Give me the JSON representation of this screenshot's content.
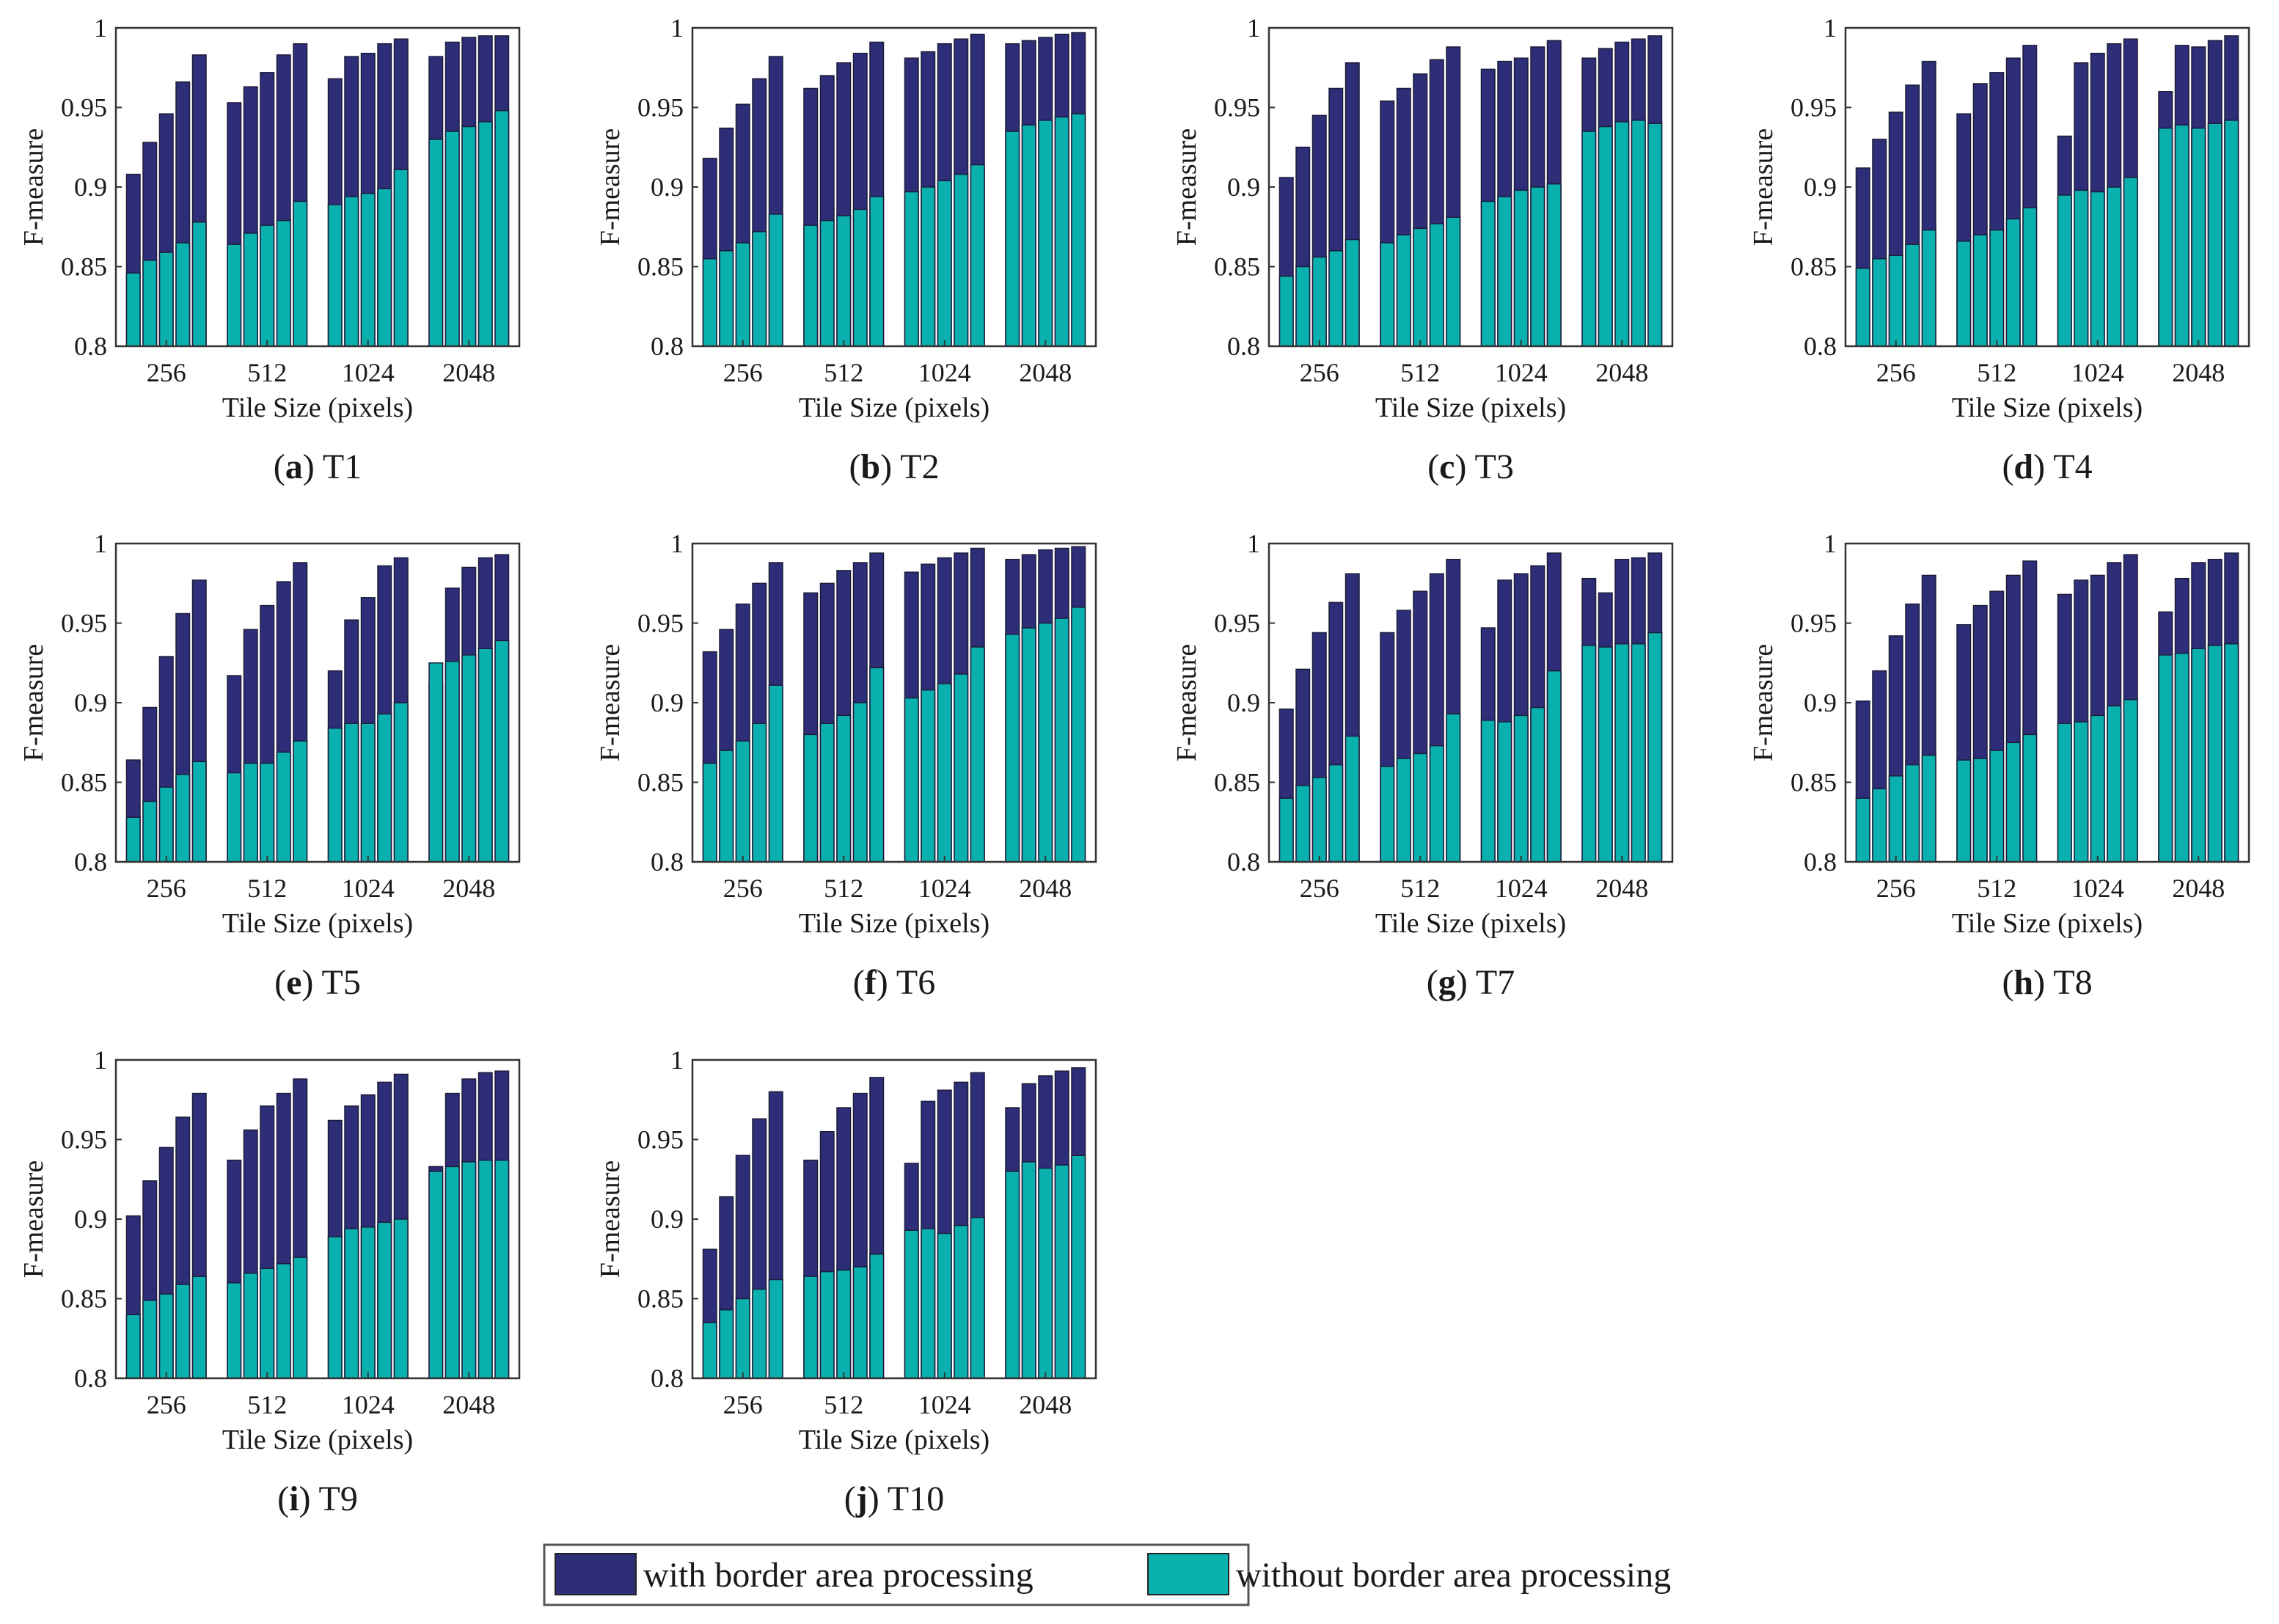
{
  "figure": {
    "legend": {
      "with_label": "with border area processing",
      "without_label": "without border area processing",
      "placement": "bottom-center"
    }
  },
  "colors": {
    "with": "#2E2E78",
    "without": "#0AB0AE",
    "axis": "#333333"
  },
  "chart_data": [
    {
      "type": "bar",
      "letter": "a",
      "title": "T1",
      "xlabel": "Tile Size (pixels)",
      "ylabel": "F-measure",
      "ylim": [
        0.8,
        1
      ],
      "yticks": [
        "0.8",
        "0.85",
        "0.9",
        "0.95",
        "1"
      ],
      "categories": [
        "256",
        "512",
        "1024",
        "2048"
      ],
      "series": [
        {
          "name": "with border area processing",
          "values": [
            [
              0.908,
              0.928,
              0.946,
              0.966,
              0.983
            ],
            [
              0.953,
              0.963,
              0.972,
              0.983,
              0.99
            ],
            [
              0.968,
              0.982,
              0.984,
              0.99,
              0.993
            ],
            [
              0.982,
              0.991,
              0.994,
              0.995,
              0.995
            ]
          ]
        },
        {
          "name": "without border area processing",
          "values": [
            [
              0.846,
              0.854,
              0.859,
              0.865,
              0.878
            ],
            [
              0.864,
              0.871,
              0.876,
              0.879,
              0.891
            ],
            [
              0.889,
              0.894,
              0.896,
              0.899,
              0.911
            ],
            [
              0.93,
              0.935,
              0.938,
              0.941,
              0.948
            ]
          ]
        }
      ]
    },
    {
      "type": "bar",
      "letter": "b",
      "title": "T2",
      "xlabel": "Tile Size (pixels)",
      "ylabel": "F-measure",
      "ylim": [
        0.8,
        1
      ],
      "yticks": [
        "0.8",
        "0.85",
        "0.9",
        "0.95",
        "1"
      ],
      "categories": [
        "256",
        "512",
        "1024",
        "2048"
      ],
      "series": [
        {
          "name": "with border area processing",
          "values": [
            [
              0.918,
              0.937,
              0.952,
              0.968,
              0.982
            ],
            [
              0.962,
              0.97,
              0.978,
              0.984,
              0.991
            ],
            [
              0.981,
              0.985,
              0.99,
              0.993,
              0.996
            ],
            [
              0.99,
              0.992,
              0.994,
              0.996,
              0.997
            ]
          ]
        },
        {
          "name": "without border area processing",
          "values": [
            [
              0.855,
              0.86,
              0.865,
              0.872,
              0.883
            ],
            [
              0.876,
              0.879,
              0.882,
              0.886,
              0.894
            ],
            [
              0.897,
              0.9,
              0.904,
              0.908,
              0.914
            ],
            [
              0.935,
              0.939,
              0.942,
              0.944,
              0.946
            ]
          ]
        }
      ]
    },
    {
      "type": "bar",
      "letter": "c",
      "title": "T3",
      "xlabel": "Tile Size (pixels)",
      "ylabel": "F-measure",
      "ylim": [
        0.8,
        1
      ],
      "yticks": [
        "0.8",
        "0.85",
        "0.9",
        "0.95",
        "1"
      ],
      "categories": [
        "256",
        "512",
        "1024",
        "2048"
      ],
      "series": [
        {
          "name": "with border area processing",
          "values": [
            [
              0.906,
              0.925,
              0.945,
              0.962,
              0.978
            ],
            [
              0.954,
              0.962,
              0.971,
              0.98,
              0.988
            ],
            [
              0.974,
              0.979,
              0.981,
              0.988,
              0.992
            ],
            [
              0.981,
              0.987,
              0.991,
              0.993,
              0.995
            ]
          ]
        },
        {
          "name": "without border area processing",
          "values": [
            [
              0.844,
              0.85,
              0.856,
              0.86,
              0.867
            ],
            [
              0.865,
              0.87,
              0.874,
              0.877,
              0.881
            ],
            [
              0.891,
              0.894,
              0.898,
              0.9,
              0.902
            ],
            [
              0.935,
              0.938,
              0.941,
              0.942,
              0.94
            ]
          ]
        }
      ]
    },
    {
      "type": "bar",
      "letter": "d",
      "title": "T4",
      "xlabel": "Tile Size (pixels)",
      "ylabel": "F-measure",
      "ylim": [
        0.8,
        1
      ],
      "yticks": [
        "0.8",
        "0.85",
        "0.9",
        "0.95",
        "1"
      ],
      "categories": [
        "256",
        "512",
        "1024",
        "2048"
      ],
      "series": [
        {
          "name": "with border area processing",
          "values": [
            [
              0.912,
              0.93,
              0.947,
              0.964,
              0.979
            ],
            [
              0.946,
              0.965,
              0.972,
              0.981,
              0.989
            ],
            [
              0.932,
              0.978,
              0.984,
              0.99,
              0.993
            ],
            [
              0.96,
              0.989,
              0.988,
              0.992,
              0.995
            ]
          ]
        },
        {
          "name": "without border area processing",
          "values": [
            [
              0.849,
              0.855,
              0.857,
              0.864,
              0.873
            ],
            [
              0.866,
              0.87,
              0.873,
              0.88,
              0.887
            ],
            [
              0.895,
              0.898,
              0.897,
              0.9,
              0.906
            ],
            [
              0.937,
              0.939,
              0.937,
              0.94,
              0.942
            ]
          ]
        }
      ]
    },
    {
      "type": "bar",
      "letter": "e",
      "title": "T5",
      "xlabel": "Tile Size (pixels)",
      "ylabel": "F-measure",
      "ylim": [
        0.8,
        1
      ],
      "yticks": [
        "0.8",
        "0.85",
        "0.9",
        "0.95",
        "1"
      ],
      "categories": [
        "256",
        "512",
        "1024",
        "2048"
      ],
      "series": [
        {
          "name": "with border area processing",
          "values": [
            [
              0.864,
              0.897,
              0.929,
              0.956,
              0.977
            ],
            [
              0.917,
              0.946,
              0.961,
              0.976,
              0.988
            ],
            [
              0.92,
              0.952,
              0.966,
              0.986,
              0.991
            ],
            [
              0.912,
              0.972,
              0.985,
              0.991,
              0.993
            ]
          ]
        },
        {
          "name": "without border area processing",
          "values": [
            [
              0.828,
              0.838,
              0.847,
              0.855,
              0.863
            ],
            [
              0.856,
              0.862,
              0.862,
              0.869,
              0.876
            ],
            [
              0.884,
              0.887,
              0.887,
              0.893,
              0.9
            ],
            [
              0.925,
              0.926,
              0.93,
              0.934,
              0.939
            ]
          ]
        }
      ]
    },
    {
      "type": "bar",
      "letter": "f",
      "title": "T6",
      "xlabel": "Tile Size (pixels)",
      "ylabel": "F-measure",
      "ylim": [
        0.8,
        1
      ],
      "yticks": [
        "0.8",
        "0.85",
        "0.9",
        "0.95",
        "1"
      ],
      "categories": [
        "256",
        "512",
        "1024",
        "2048"
      ],
      "series": [
        {
          "name": "with border area processing",
          "values": [
            [
              0.932,
              0.946,
              0.962,
              0.975,
              0.988
            ],
            [
              0.969,
              0.975,
              0.983,
              0.988,
              0.994
            ],
            [
              0.982,
              0.987,
              0.991,
              0.994,
              0.997
            ],
            [
              0.99,
              0.993,
              0.996,
              0.997,
              0.998
            ]
          ]
        },
        {
          "name": "without border area processing",
          "values": [
            [
              0.862,
              0.87,
              0.876,
              0.887,
              0.911
            ],
            [
              0.88,
              0.887,
              0.892,
              0.9,
              0.922
            ],
            [
              0.903,
              0.908,
              0.912,
              0.918,
              0.935
            ],
            [
              0.943,
              0.947,
              0.95,
              0.953,
              0.96
            ]
          ]
        }
      ]
    },
    {
      "type": "bar",
      "letter": "g",
      "title": "T7",
      "xlabel": "Tile Size (pixels)",
      "ylabel": "F-measure",
      "ylim": [
        0.8,
        1
      ],
      "yticks": [
        "0.8",
        "0.85",
        "0.9",
        "0.95",
        "1"
      ],
      "categories": [
        "256",
        "512",
        "1024",
        "2048"
      ],
      "series": [
        {
          "name": "with border area processing",
          "values": [
            [
              0.896,
              0.921,
              0.944,
              0.963,
              0.981
            ],
            [
              0.944,
              0.958,
              0.97,
              0.981,
              0.99
            ],
            [
              0.947,
              0.977,
              0.981,
              0.986,
              0.994
            ],
            [
              0.978,
              0.969,
              0.99,
              0.991,
              0.994
            ]
          ]
        },
        {
          "name": "without border area processing",
          "values": [
            [
              0.84,
              0.848,
              0.853,
              0.861,
              0.879
            ],
            [
              0.86,
              0.865,
              0.868,
              0.873,
              0.893
            ],
            [
              0.889,
              0.888,
              0.892,
              0.897,
              0.92
            ],
            [
              0.936,
              0.935,
              0.937,
              0.937,
              0.944
            ]
          ]
        }
      ]
    },
    {
      "type": "bar",
      "letter": "h",
      "title": "T8",
      "xlabel": "Tile Size (pixels)",
      "ylabel": "F-measure",
      "ylim": [
        0.8,
        1
      ],
      "yticks": [
        "0.8",
        "0.85",
        "0.9",
        "0.95",
        "1"
      ],
      "categories": [
        "256",
        "512",
        "1024",
        "2048"
      ],
      "series": [
        {
          "name": "with border area processing",
          "values": [
            [
              0.901,
              0.92,
              0.942,
              0.962,
              0.98
            ],
            [
              0.949,
              0.961,
              0.97,
              0.98,
              0.989
            ],
            [
              0.968,
              0.977,
              0.98,
              0.988,
              0.993
            ],
            [
              0.957,
              0.978,
              0.988,
              0.99,
              0.994
            ]
          ]
        },
        {
          "name": "without border area processing",
          "values": [
            [
              0.84,
              0.846,
              0.854,
              0.861,
              0.867
            ],
            [
              0.864,
              0.865,
              0.87,
              0.875,
              0.88
            ],
            [
              0.887,
              0.888,
              0.892,
              0.898,
              0.902
            ],
            [
              0.93,
              0.931,
              0.934,
              0.936,
              0.937
            ]
          ]
        }
      ]
    },
    {
      "type": "bar",
      "letter": "i",
      "title": "T9",
      "xlabel": "Tile Size (pixels)",
      "ylabel": "F-measure",
      "ylim": [
        0.8,
        1
      ],
      "yticks": [
        "0.8",
        "0.85",
        "0.9",
        "0.95",
        "1"
      ],
      "categories": [
        "256",
        "512",
        "1024",
        "2048"
      ],
      "series": [
        {
          "name": "with border area processing",
          "values": [
            [
              0.902,
              0.924,
              0.945,
              0.964,
              0.979
            ],
            [
              0.937,
              0.956,
              0.971,
              0.979,
              0.988
            ],
            [
              0.962,
              0.971,
              0.978,
              0.986,
              0.991
            ],
            [
              0.933,
              0.979,
              0.988,
              0.992,
              0.993
            ]
          ]
        },
        {
          "name": "without border area processing",
          "values": [
            [
              0.84,
              0.849,
              0.853,
              0.859,
              0.864
            ],
            [
              0.86,
              0.866,
              0.869,
              0.872,
              0.876
            ],
            [
              0.889,
              0.894,
              0.895,
              0.898,
              0.9
            ],
            [
              0.93,
              0.933,
              0.936,
              0.937,
              0.937
            ]
          ]
        }
      ]
    },
    {
      "type": "bar",
      "letter": "j",
      "title": "T10",
      "xlabel": "Tile Size (pixels)",
      "ylabel": "F-measure",
      "ylim": [
        0.8,
        1
      ],
      "yticks": [
        "0.8",
        "0.85",
        "0.9",
        "0.95",
        "1"
      ],
      "categories": [
        "256",
        "512",
        "1024",
        "2048"
      ],
      "series": [
        {
          "name": "with border area processing",
          "values": [
            [
              0.881,
              0.914,
              0.94,
              0.963,
              0.98
            ],
            [
              0.937,
              0.955,
              0.97,
              0.979,
              0.989
            ],
            [
              0.935,
              0.974,
              0.981,
              0.986,
              0.992
            ],
            [
              0.97,
              0.985,
              0.99,
              0.993,
              0.995
            ]
          ]
        },
        {
          "name": "without border area processing",
          "values": [
            [
              0.835,
              0.843,
              0.85,
              0.856,
              0.862
            ],
            [
              0.864,
              0.867,
              0.868,
              0.87,
              0.878
            ],
            [
              0.893,
              0.894,
              0.891,
              0.896,
              0.901
            ],
            [
              0.93,
              0.936,
              0.932,
              0.934,
              0.94
            ]
          ]
        }
      ]
    }
  ]
}
